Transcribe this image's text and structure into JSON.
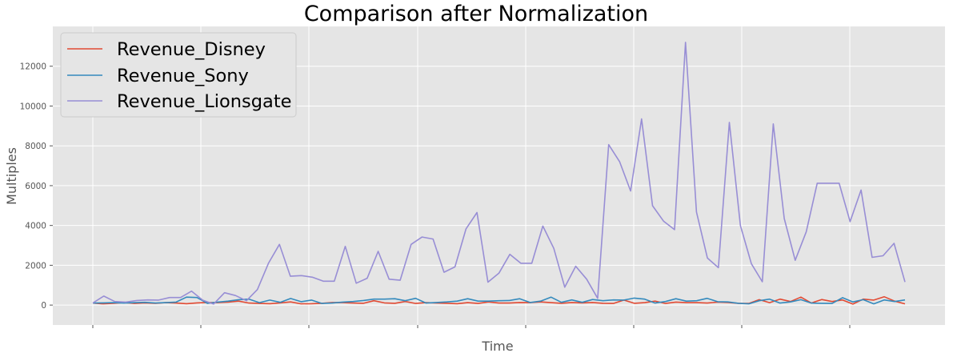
{
  "chart_data": {
    "type": "line",
    "title": "Comparison after Normalization",
    "xlabel": "Time",
    "ylabel": "Multiples",
    "ylim": [
      -1000,
      14000
    ],
    "yticks": [
      0,
      2000,
      4000,
      6000,
      8000,
      10000,
      12000
    ],
    "xticks_labeled": false,
    "grid": true,
    "legend_position": "top-left",
    "style": {
      "background": "#E5E5E5",
      "grid_color": "#FFFFFF"
    },
    "series": [
      {
        "name": "Revenue_Disney",
        "color": "#E24A33",
        "values": [
          100,
          60,
          90,
          130,
          80,
          110,
          90,
          120,
          100,
          70,
          110,
          130,
          120,
          150,
          200,
          100,
          80,
          70,
          110,
          160,
          60,
          70,
          90,
          130,
          120,
          100,
          90,
          220,
          110,
          90,
          180,
          80,
          120,
          100,
          90,
          70,
          120,
          80,
          160,
          100,
          100,
          130,
          120,
          160,
          120,
          90,
          130,
          110,
          130,
          90,
          80,
          250,
          90,
          120,
          200,
          80,
          150,
          120,
          120,
          100,
          150,
          130,
          90,
          80,
          270,
          120,
          300,
          180,
          400,
          100,
          280,
          180,
          260,
          50,
          300,
          250,
          420,
          200,
          60
        ]
      },
      {
        "name": "Revenue_Sony",
        "color": "#348ABD",
        "values": [
          100,
          110,
          120,
          100,
          120,
          140,
          100,
          120,
          150,
          400,
          380,
          90,
          150,
          200,
          270,
          300,
          120,
          250,
          140,
          330,
          170,
          250,
          80,
          100,
          150,
          180,
          230,
          300,
          300,
          320,
          220,
          340,
          100,
          130,
          160,
          200,
          320,
          200,
          200,
          220,
          230,
          320,
          130,
          200,
          400,
          140,
          260,
          140,
          280,
          220,
          260,
          250,
          350,
          300,
          100,
          180,
          320,
          200,
          220,
          340,
          170,
          160,
          90,
          60,
          220,
          300,
          100,
          160,
          270,
          100,
          90,
          80,
          370,
          160,
          270,
          60,
          260,
          180,
          260
        ]
      },
      {
        "name": "Revenue_Lionsgate",
        "color": "#988ED5",
        "values": [
          100,
          450,
          180,
          150,
          230,
          260,
          250,
          380,
          380,
          700,
          250,
          50,
          620,
          480,
          220,
          780,
          2100,
          3050,
          1450,
          1480,
          1400,
          1200,
          1200,
          2950,
          1100,
          1350,
          2700,
          1300,
          1250,
          3050,
          3420,
          3320,
          1650,
          1920,
          3830,
          4650,
          1150,
          1600,
          2550,
          2100,
          2100,
          3970,
          2850,
          900,
          1950,
          1300,
          340,
          8060,
          7200,
          5730,
          9350,
          4990,
          4220,
          3790,
          13200,
          4680,
          2360,
          1880,
          9180,
          4000,
          2080,
          1170,
          9100,
          4350,
          2250,
          3680,
          6120,
          6120,
          6120,
          4190,
          5780,
          2400,
          2480,
          3100,
          1160
        ]
      }
    ]
  }
}
